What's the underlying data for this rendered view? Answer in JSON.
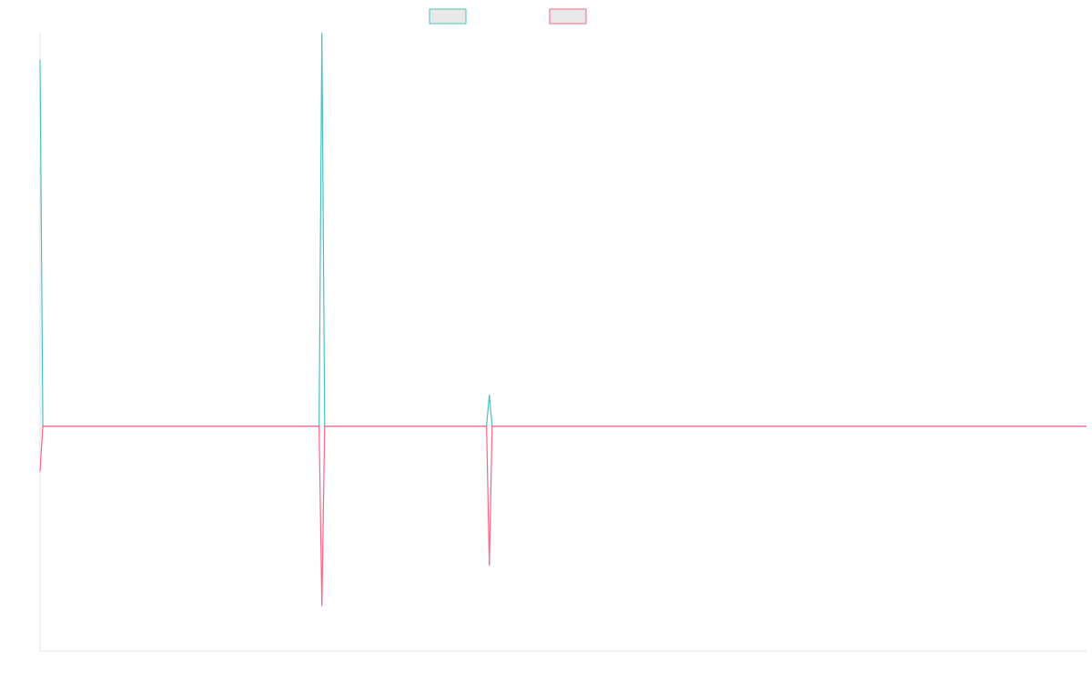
{
  "chart_data": {
    "type": "line",
    "title": "",
    "xlabel": "",
    "ylabel": "",
    "grid": false,
    "legend_position": "top-center",
    "ylim": [
      -100,
      175
    ],
    "xlim": [
      0,
      375
    ],
    "points_count": 376,
    "series": [
      {
        "color": "#4bc0c0",
        "points": [
          [
            0,
            163
          ],
          [
            1,
            0
          ],
          [
            100,
            0
          ],
          [
            101,
            175
          ],
          [
            102,
            0
          ],
          [
            160,
            0
          ],
          [
            161,
            14
          ],
          [
            162,
            0
          ],
          [
            375,
            0
          ]
        ]
      },
      {
        "color": "#ff6384",
        "points": [
          [
            0,
            -20
          ],
          [
            1,
            0
          ],
          [
            100,
            0
          ],
          [
            101,
            -80
          ],
          [
            102,
            0
          ],
          [
            160,
            0
          ],
          [
            161,
            -62
          ],
          [
            162,
            0
          ],
          [
            375,
            0
          ]
        ]
      }
    ]
  }
}
